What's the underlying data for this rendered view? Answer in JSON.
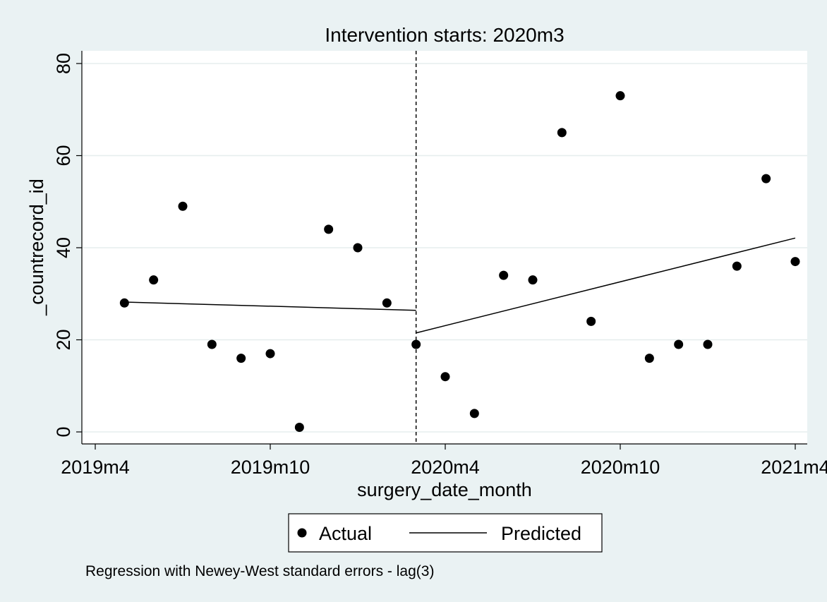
{
  "chart_data": {
    "type": "scatter",
    "title": "Intervention starts: 2020m3",
    "xlabel": "surgery_date_month",
    "ylabel": "_countrecord_id",
    "note": "Regression with Newey-West standard errors - lag(3)",
    "x_tick_labels": [
      "2019m4",
      "2019m10",
      "2020m4",
      "2020m10",
      "2021m4"
    ],
    "x_tick_months": [
      "2019-04",
      "2019-10",
      "2020-04",
      "2020-10",
      "2021-04"
    ],
    "y_ticks": [
      0,
      20,
      40,
      60,
      80
    ],
    "xlim": [
      "2019-04",
      "2021-04"
    ],
    "ylim": [
      0,
      80
    ],
    "grid": true,
    "legend_position": "bottom",
    "intervention_month": "2020-03",
    "series": [
      {
        "name": "Actual",
        "type": "scatter",
        "color": "#000000",
        "points": [
          {
            "x": "2019-05",
            "y": 28
          },
          {
            "x": "2019-06",
            "y": 33
          },
          {
            "x": "2019-07",
            "y": 49
          },
          {
            "x": "2019-08",
            "y": 19
          },
          {
            "x": "2019-09",
            "y": 16
          },
          {
            "x": "2019-10",
            "y": 17
          },
          {
            "x": "2019-11",
            "y": 1
          },
          {
            "x": "2019-12",
            "y": 44
          },
          {
            "x": "2020-01",
            "y": 40
          },
          {
            "x": "2020-02",
            "y": 28
          },
          {
            "x": "2020-03",
            "y": 19
          },
          {
            "x": "2020-04",
            "y": 12
          },
          {
            "x": "2020-05",
            "y": 4
          },
          {
            "x": "2020-06",
            "y": 34
          },
          {
            "x": "2020-07",
            "y": 33
          },
          {
            "x": "2020-08",
            "y": 65
          },
          {
            "x": "2020-09",
            "y": 24
          },
          {
            "x": "2020-10",
            "y": 73
          },
          {
            "x": "2020-11",
            "y": 16
          },
          {
            "x": "2020-12",
            "y": 19
          },
          {
            "x": "2021-01",
            "y": 19
          },
          {
            "x": "2021-02",
            "y": 36
          },
          {
            "x": "2021-03",
            "y": 55
          },
          {
            "x": "2021-04",
            "y": 37
          }
        ]
      },
      {
        "name": "Predicted",
        "type": "line",
        "color": "#000000",
        "segments": [
          [
            {
              "x": "2019-05",
              "y": 28.2
            },
            {
              "x": "2020-03",
              "y": 26.4
            }
          ],
          [
            {
              "x": "2020-03",
              "y": 21.5
            },
            {
              "x": "2021-04",
              "y": 42.1
            }
          ]
        ]
      }
    ]
  }
}
